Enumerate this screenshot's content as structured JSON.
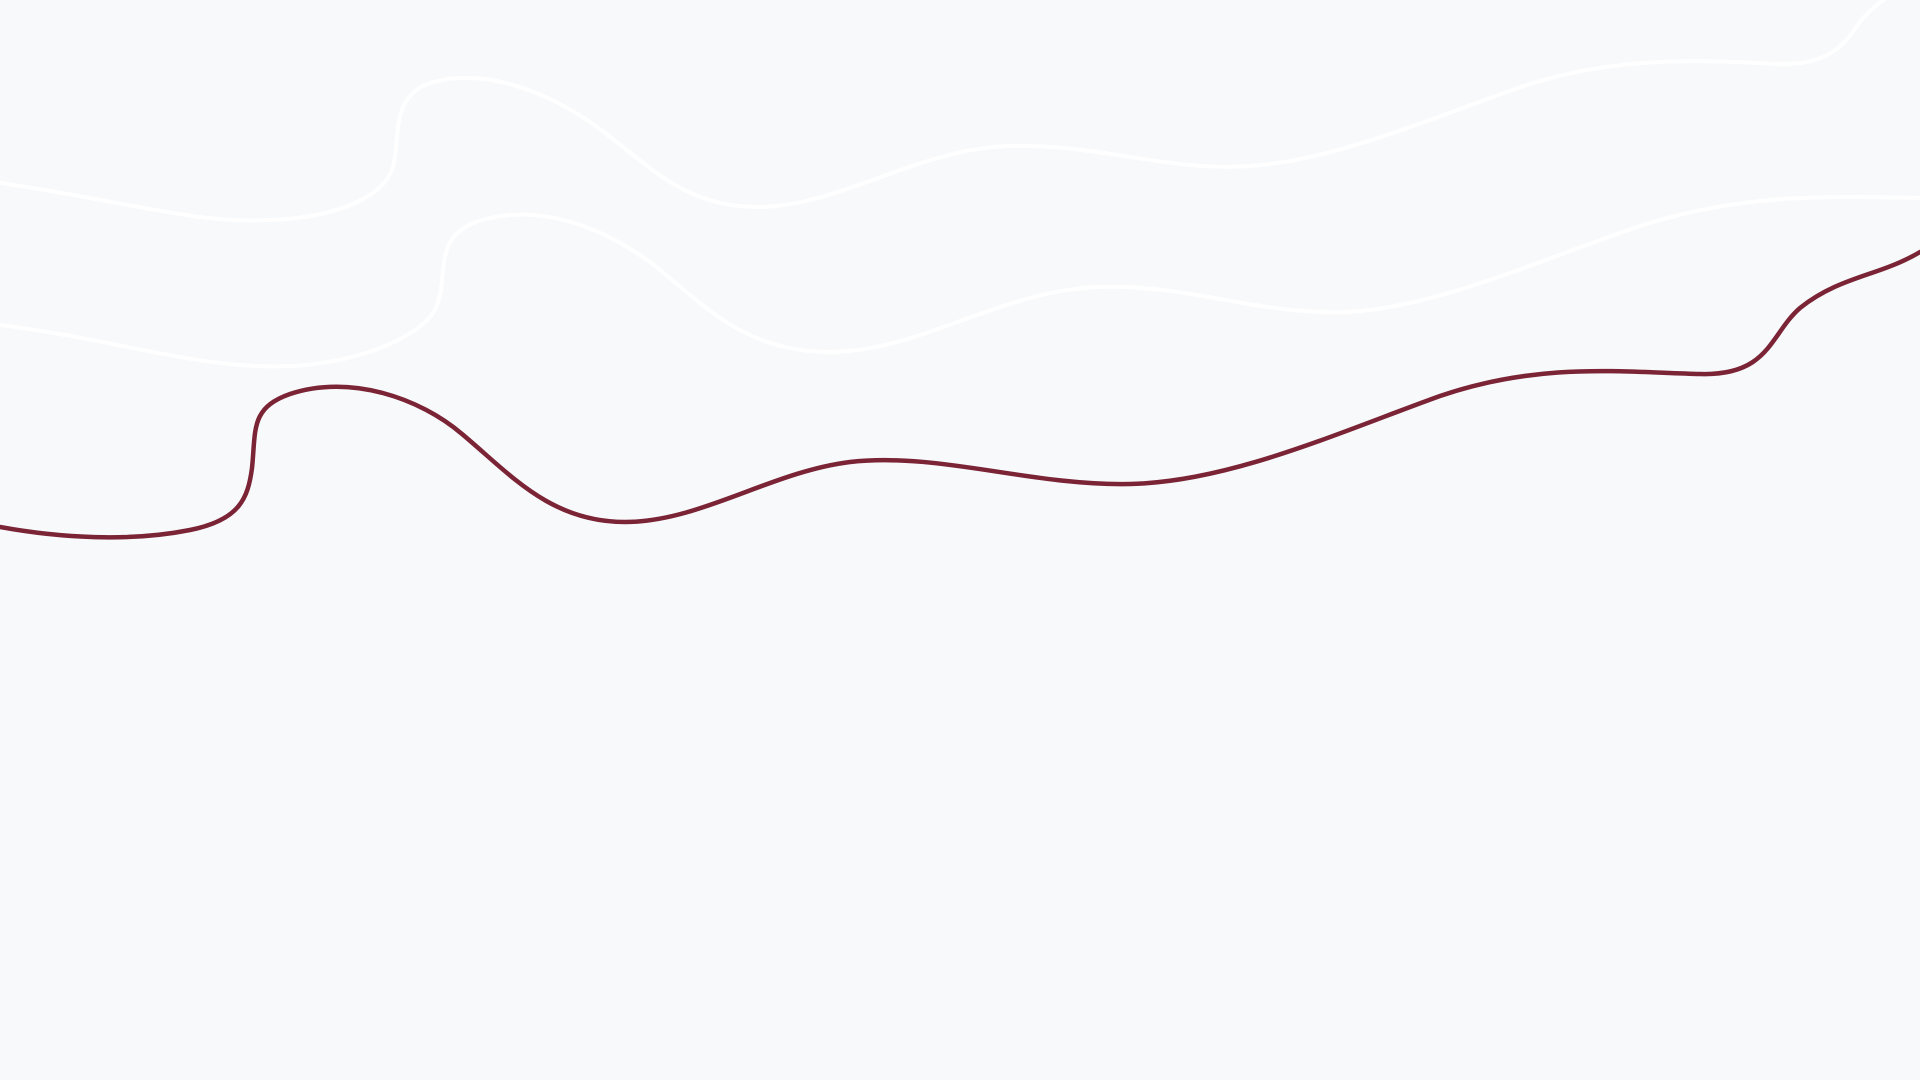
{
  "background": {
    "color": "#f7f9fb"
  },
  "decoration": {
    "accent_line_color": "#7a2436",
    "light_line_color": "#ffffff"
  }
}
